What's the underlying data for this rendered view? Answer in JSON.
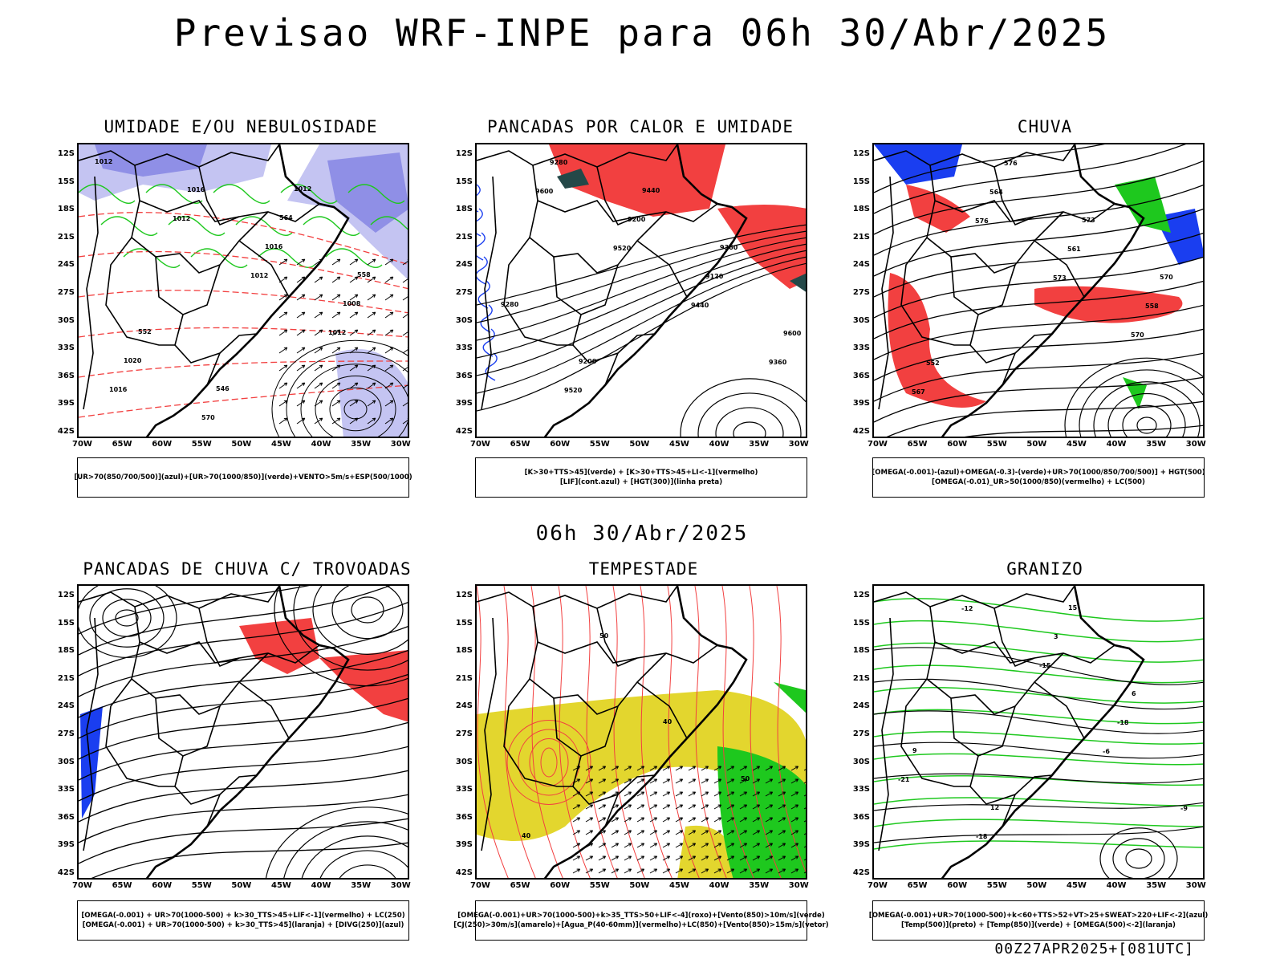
{
  "page": {
    "title": "Previsao WRF-INPE  para 06h 30/Abr/2025",
    "mid_title": "06h 30/Abr/2025",
    "footer": "00Z27APR2025+[081UTC]"
  },
  "axes": {
    "lat_labels": [
      "12S",
      "15S",
      "18S",
      "21S",
      "24S",
      "27S",
      "30S",
      "33S",
      "36S",
      "39S",
      "42S"
    ],
    "lon_labels": [
      "70W",
      "65W",
      "60W",
      "55W",
      "50W",
      "45W",
      "40W",
      "35W",
      "30W"
    ]
  },
  "colors": {
    "blue_shade": "#8f8fe6",
    "light_blue": "#c4c4f2",
    "green": "#1ec81e",
    "red": "#f24040",
    "yellow": "#e3d62e",
    "dark_teal": "#244848",
    "blue_line": "#1a3ef0"
  },
  "panels": [
    {
      "id": "umidade",
      "title": "UMIDADE E/OU NEBULOSIDADE",
      "legend": [
        "[UR>70(850/700/500)](azul)+[UR>70(1000/850)](verde)+VENTO>5m/s+ESP(500/1000)"
      ],
      "labels": [
        "1012",
        "1012",
        "1012",
        "1012",
        "1016",
        "1016",
        "1016",
        "1008",
        "1020",
        "570",
        "564",
        "558",
        "552",
        "546",
        "1012"
      ]
    },
    {
      "id": "pancadas_calor",
      "title": "PANCADAS POR CALOR E UMIDADE",
      "legend": [
        "[K>30+TTS>45](verde) + [K>30+TTS>45+LI<-1](vermelho)",
        "[LIF](cont.azul) + [HGT(300)](linha preta)"
      ],
      "labels": [
        "9600",
        "9520",
        "9440",
        "9360",
        "9280",
        "9200",
        "9120",
        "9600",
        "9520",
        "9440",
        "9360",
        "9280",
        "9200"
      ]
    },
    {
      "id": "chuva",
      "title": "CHUVA",
      "legend": [
        "[OMEGA(-0.001)-(azul)+OMEGA(-0.3)-(verde)+UR>70(1000/850/700/500)] + HGT(500)",
        "[OMEGA(-0.01)_UR>50(1000/850)(vermelho) + LC(500)"
      ],
      "labels": [
        "576",
        "573",
        "570",
        "567",
        "564",
        "561",
        "558",
        "552",
        "576",
        "573",
        "570"
      ]
    },
    {
      "id": "trovoadas",
      "title": "PANCADAS DE CHUVA C/ TROVOADAS",
      "legend": [
        "[OMEGA(-0.001) + UR>70(1000-500) + k>30_TTS>45+LIF<-1](vermelho) + LC(250)",
        "[OMEGA(-0.001) + UR>70(1000-500) + k>30_TTS>45](laranja) + [DIVG(250)](azul)"
      ],
      "labels": []
    },
    {
      "id": "tempestade",
      "title": "TEMPESTADE",
      "legend": [
        "[OMEGA(-0.001)+UR>70(1000-500)+k>35_TTS>50+LIF<-4](roxo)+[Vento(850)>10m/s](verde)",
        "[CJ(250)>30m/s](amarelo)+[Agua_P(40-60mm)](vermelho)+LC(850)+[Vento(850)>15m/s](vetor)"
      ],
      "labels": [
        "40",
        "50",
        "40",
        "50"
      ]
    },
    {
      "id": "granizo",
      "title": "GRANIZO",
      "legend": [
        "[OMEGA(-0.001)+UR>70(1000-500)+k<60+TTS>52+VT>25+SWEAT>220+LIF<-2](azul)",
        "[Temp(500)](preto) + [Temp(850)](verde) + [OMEGA(500)<-2](laranja)"
      ],
      "labels": [
        "-6",
        "-9",
        "-12",
        "-15",
        "-18",
        "-21",
        "-18",
        "3",
        "6",
        "9",
        "12",
        "15"
      ]
    }
  ]
}
